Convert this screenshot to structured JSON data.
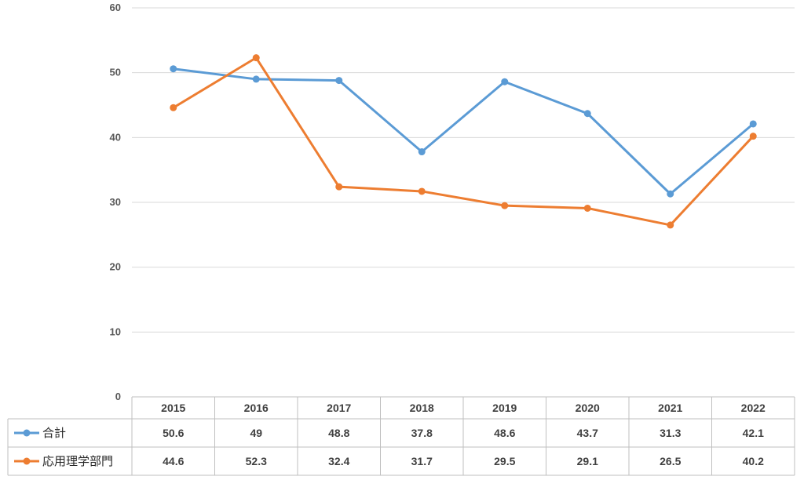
{
  "colors": {
    "series_1": "#5B9BD5",
    "series_2": "#ED7D31",
    "grid": "#D9D9D9",
    "table_border": "#BFBFBF"
  },
  "chart_data": {
    "type": "line",
    "categories": [
      "2015",
      "2016",
      "2017",
      "2018",
      "2019",
      "2020",
      "2021",
      "2022"
    ],
    "series": [
      {
        "name": "合計",
        "values": [
          50.6,
          49,
          48.8,
          37.8,
          48.6,
          43.7,
          31.3,
          42.1
        ]
      },
      {
        "name": "応用理学部門",
        "values": [
          44.6,
          52.3,
          32.4,
          31.7,
          29.5,
          29.1,
          26.5,
          40.2
        ]
      }
    ],
    "ylim": [
      0,
      60
    ],
    "yticks": [
      "0",
      "10",
      "20",
      "30",
      "40",
      "50",
      "60"
    ],
    "grid": true,
    "legend": "data-table"
  }
}
